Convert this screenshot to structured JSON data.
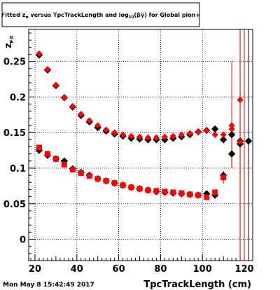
{
  "title_box": {
    "pre": "Fitted z",
    "sub1": "π",
    "mid": " versus TpcTrackLength and log",
    "sub2": "10",
    "post": "(βγ) for Global pion+"
  },
  "timestamp": "Mon May  8 15:42:49 2017",
  "colors": {
    "black_series": "#000000",
    "red_series": "#ff0000",
    "frame": "#000000",
    "grid": "#000000"
  },
  "chart_data": {
    "type": "scatter",
    "title": "Fitted z_π versus TpcTrackLength and log_10(βγ) for Global pion+",
    "xlabel": "TpcTrackLength (cm)",
    "ylabel": "z_Fit",
    "xlim": [
      17,
      124
    ],
    "ylim": [
      -0.03,
      0.295
    ],
    "xticks": [
      20,
      40,
      60,
      80,
      100,
      120
    ],
    "xtick_labels": [
      "20",
      "40",
      "60",
      "80",
      "100",
      "120"
    ],
    "yticks": [
      0,
      0.05,
      0.1,
      0.15,
      0.2,
      0.25
    ],
    "ytick_labels": [
      "0",
      "0.05",
      "0.1",
      "0.15",
      "0.2",
      "0.25"
    ],
    "grid": true,
    "series": [
      {
        "color": "#000000",
        "marker": "diamond",
        "points": [
          {
            "x": 22,
            "y": 0.259
          },
          {
            "x": 26,
            "y": 0.238
          },
          {
            "x": 30,
            "y": 0.216
          },
          {
            "x": 34,
            "y": 0.199
          },
          {
            "x": 38,
            "y": 0.186
          },
          {
            "x": 42,
            "y": 0.174
          },
          {
            "x": 46,
            "y": 0.165
          },
          {
            "x": 50,
            "y": 0.157
          },
          {
            "x": 54,
            "y": 0.152
          },
          {
            "x": 58,
            "y": 0.148
          },
          {
            "x": 62,
            "y": 0.145
          },
          {
            "x": 66,
            "y": 0.142
          },
          {
            "x": 70,
            "y": 0.141
          },
          {
            "x": 74,
            "y": 0.14
          },
          {
            "x": 78,
            "y": 0.14
          },
          {
            "x": 82,
            "y": 0.14
          },
          {
            "x": 86,
            "y": 0.142
          },
          {
            "x": 90,
            "y": 0.144
          },
          {
            "x": 94,
            "y": 0.147
          },
          {
            "x": 98,
            "y": 0.151
          },
          {
            "x": 102,
            "y": 0.153
          },
          {
            "x": 106,
            "y": 0.155
          },
          {
            "x": 110,
            "y": 0.14
          },
          {
            "x": 114,
            "y": 0.147
          },
          {
            "x": 118,
            "y": 0.138
          },
          {
            "x": 122,
            "y": 0.138
          },
          {
            "x": 22,
            "y": 0.125
          },
          {
            "x": 26,
            "y": 0.118
          },
          {
            "x": 30,
            "y": 0.113
          },
          {
            "x": 34,
            "y": 0.11
          },
          {
            "x": 38,
            "y": 0.099
          },
          {
            "x": 42,
            "y": 0.094
          },
          {
            "x": 46,
            "y": 0.09
          },
          {
            "x": 50,
            "y": 0.085
          },
          {
            "x": 54,
            "y": 0.082
          },
          {
            "x": 58,
            "y": 0.079
          },
          {
            "x": 62,
            "y": 0.076
          },
          {
            "x": 66,
            "y": 0.073
          },
          {
            "x": 70,
            "y": 0.071
          },
          {
            "x": 74,
            "y": 0.069
          },
          {
            "x": 78,
            "y": 0.067
          },
          {
            "x": 82,
            "y": 0.066
          },
          {
            "x": 86,
            "y": 0.065
          },
          {
            "x": 90,
            "y": 0.064
          },
          {
            "x": 94,
            "y": 0.063
          },
          {
            "x": 98,
            "y": 0.062
          },
          {
            "x": 102,
            "y": 0.064
          },
          {
            "x": 106,
            "y": 0.062
          },
          {
            "x": 110,
            "y": 0.09
          },
          {
            "x": 114,
            "y": 0.12
          },
          {
            "x": 118,
            "y": 0.134
          }
        ]
      },
      {
        "color": "#ff0000",
        "marker": "diamond+square",
        "points": [
          {
            "x": 22,
            "y": 0.261
          },
          {
            "x": 26,
            "y": 0.239
          },
          {
            "x": 30,
            "y": 0.217
          },
          {
            "x": 34,
            "y": 0.199
          },
          {
            "x": 38,
            "y": 0.187
          },
          {
            "x": 42,
            "y": 0.176
          },
          {
            "x": 46,
            "y": 0.167
          },
          {
            "x": 50,
            "y": 0.16
          },
          {
            "x": 54,
            "y": 0.154
          },
          {
            "x": 58,
            "y": 0.15
          },
          {
            "x": 62,
            "y": 0.147
          },
          {
            "x": 66,
            "y": 0.145
          },
          {
            "x": 70,
            "y": 0.144
          },
          {
            "x": 74,
            "y": 0.143
          },
          {
            "x": 78,
            "y": 0.143
          },
          {
            "x": 82,
            "y": 0.144
          },
          {
            "x": 86,
            "y": 0.145
          },
          {
            "x": 90,
            "y": 0.147
          },
          {
            "x": 94,
            "y": 0.149
          },
          {
            "x": 98,
            "y": 0.151
          },
          {
            "x": 102,
            "y": 0.153
          },
          {
            "x": 106,
            "y": 0.147
          },
          {
            "x": 110,
            "y": 0.147
          },
          {
            "x": 114,
            "y": 0.16
          },
          {
            "x": 118,
            "y": 0.196
          },
          {
            "x": 22,
            "y": 0.129
          },
          {
            "x": 26,
            "y": 0.12
          },
          {
            "x": 30,
            "y": 0.113
          },
          {
            "x": 34,
            "y": 0.105
          },
          {
            "x": 38,
            "y": 0.098
          },
          {
            "x": 42,
            "y": 0.093
          },
          {
            "x": 46,
            "y": 0.089
          },
          {
            "x": 50,
            "y": 0.085
          },
          {
            "x": 54,
            "y": 0.082
          },
          {
            "x": 58,
            "y": 0.079
          },
          {
            "x": 62,
            "y": 0.076
          },
          {
            "x": 66,
            "y": 0.073
          },
          {
            "x": 70,
            "y": 0.071
          },
          {
            "x": 74,
            "y": 0.069
          },
          {
            "x": 78,
            "y": 0.068
          },
          {
            "x": 82,
            "y": 0.067
          },
          {
            "x": 86,
            "y": 0.066
          },
          {
            "x": 90,
            "y": 0.065
          },
          {
            "x": 94,
            "y": 0.063
          },
          {
            "x": 98,
            "y": 0.062
          },
          {
            "x": 102,
            "y": 0.059
          },
          {
            "x": 106,
            "y": 0.066
          },
          {
            "x": 110,
            "y": 0.087
          },
          {
            "x": 114,
            "y": 0.155
          },
          {
            "x": 118,
            "y": 0.137
          }
        ]
      }
    ],
    "error_bars": [
      {
        "color": "#ff0000",
        "x": 110,
        "ylow": 0.078,
        "yhigh": 0.096
      },
      {
        "color": "#000000",
        "x": 114,
        "ylow": 0.1,
        "yhigh": 0.15
      },
      {
        "color": "#ff0000",
        "x": 114,
        "ylow": 0.1,
        "yhigh": 0.25
      },
      {
        "color": "#000000",
        "x": 118,
        "ylow": -0.03,
        "yhigh": 0.295
      },
      {
        "color": "#ff0000",
        "x": 118,
        "ylow": -0.03,
        "yhigh": 0.295
      },
      {
        "color": "#ff0000",
        "x": 120,
        "ylow": -0.03,
        "yhigh": 0.295
      },
      {
        "color": "#000000",
        "x": 122,
        "ylow": -0.03,
        "yhigh": 0.295
      }
    ]
  }
}
